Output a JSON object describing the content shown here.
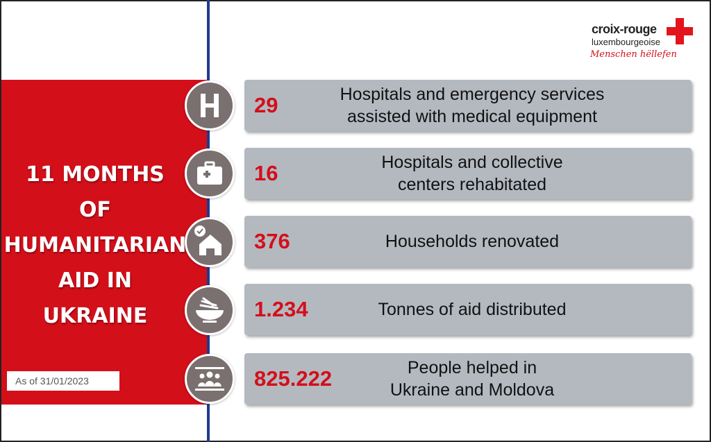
{
  "headline": {
    "lines": [
      "11 MONTHS",
      "OF",
      "HUMANITARIAN",
      "AID IN",
      "UKRAINE"
    ]
  },
  "as_of": "As of 31/01/2023",
  "logo": {
    "line1": "croix-rouge",
    "line2": "luxembourgeoise",
    "tagline": "Menschen hëllefen",
    "accent_color": "#e3141b"
  },
  "colors": {
    "panel_red": "#d30f1a",
    "divider_blue": "#1f3b8f",
    "card_gray": "#b4b9c0",
    "icon_gray": "#7a7070"
  },
  "stats": [
    {
      "value": "29",
      "line1": "Hospitals and emergency services",
      "line2": "assisted with medical equipment",
      "icon": "hospital-h-icon"
    },
    {
      "value": "16",
      "line1": "Hospitals and collective",
      "line2": "centers rehabitated",
      "icon": "medical-kit-icon"
    },
    {
      "value": "376",
      "line1": "Households renovated",
      "line2": "",
      "icon": "house-check-icon"
    },
    {
      "value": "1.234",
      "line1": "Tonnes of aid distributed",
      "line2": "",
      "icon": "food-bowl-icon"
    },
    {
      "value": "825.222",
      "line1": "People helped in",
      "line2": "Ukraine and Moldova",
      "icon": "people-group-icon"
    }
  ]
}
